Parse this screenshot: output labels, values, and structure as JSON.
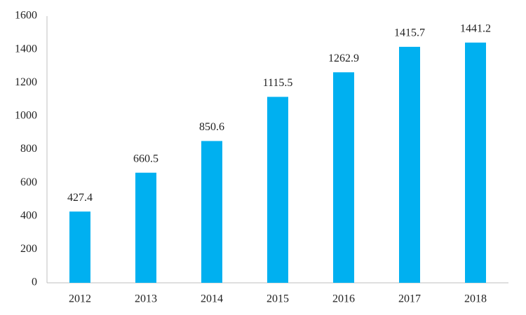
{
  "chart_data": {
    "type": "bar",
    "categories": [
      "2012",
      "2013",
      "2014",
      "2015",
      "2016",
      "2017",
      "2018"
    ],
    "values": [
      427.4,
      660.5,
      850.6,
      1115.5,
      1262.9,
      1415.7,
      1441.2
    ],
    "color": "#00b0f0",
    "ylim": [
      0,
      1600
    ],
    "yticks": [
      0,
      200,
      400,
      600,
      800,
      1000,
      1200,
      1400,
      1600
    ],
    "grid": false
  }
}
